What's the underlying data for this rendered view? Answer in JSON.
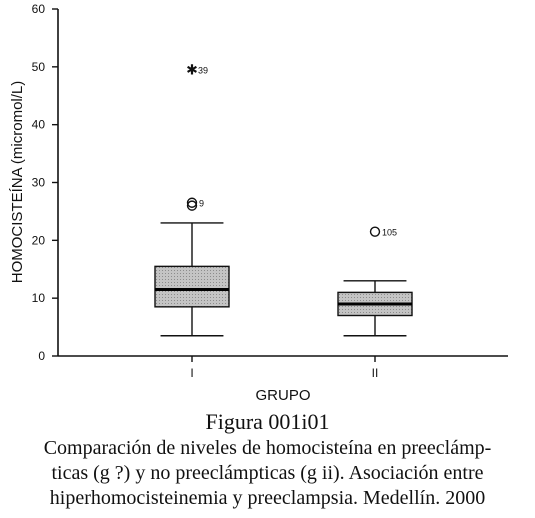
{
  "chart_data": {
    "type": "boxplot",
    "ylabel": "HOMOCISTEÍNA (micromol/L)",
    "xlabel": "GRUPO",
    "ylim": [
      0,
      60
    ],
    "yticks": [
      0,
      10,
      20,
      30,
      40,
      50,
      60
    ],
    "categories": [
      "I",
      "II"
    ],
    "groups": [
      {
        "label": "I",
        "whisker_low": 3.5,
        "q1": 8.5,
        "median": 11.5,
        "q3": 15.5,
        "whisker_high": 23,
        "outliers": [
          {
            "value": 26.5,
            "marker": "circle",
            "label": "9"
          },
          {
            "value": 26,
            "marker": "circle",
            "label": ""
          }
        ],
        "extremes": [
          {
            "value": 49.5,
            "marker": "star",
            "label": "39"
          }
        ]
      },
      {
        "label": "II",
        "whisker_low": 3.5,
        "q1": 7,
        "median": 9,
        "q3": 11,
        "whisker_high": 13,
        "outliers": [
          {
            "value": 21.5,
            "marker": "circle",
            "label": "105"
          }
        ],
        "extremes": []
      }
    ],
    "box_fill": "#b8b8b8"
  },
  "caption": {
    "figure_label": "Figura 001i01",
    "line1": "Comparación de niveles de homocisteína en preeclámp-",
    "line2": "ticas (g ?) y no preeclámpticas (g ii). Asociación entre",
    "line3": "hiperhomocisteinemia y preeclampsia. Medellín. 2000"
  }
}
